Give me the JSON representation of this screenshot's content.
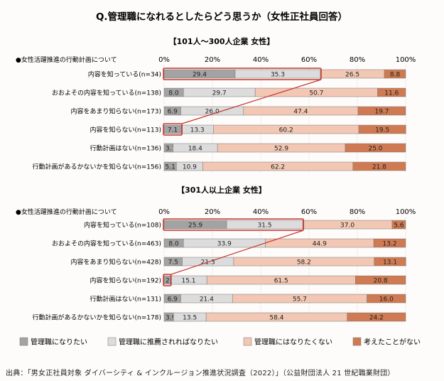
{
  "title": "Q.管理職になれるとしたらどう思うか（女性正社員回答）",
  "source": "出典：「男女正社員対象 ダイバーシティ & インクルージョン推進状況調査（2022）」（公益財団法人 21 世紀職業財団）",
  "colors": {
    "s1": "#a3a3a3",
    "s2": "#dcdcdc",
    "s3": "#f2c7b3",
    "s4": "#cf7a52",
    "highlight": "#c8352e"
  },
  "chart_data": [
    {
      "type": "bar",
      "title": "【101人〜300人企業 女性】",
      "header": "●女性活躍推進の行動計画について",
      "x_ticks": [
        "0%",
        "20%",
        "40%",
        "60%",
        "80%",
        "100%"
      ],
      "xlim": [
        0,
        100
      ],
      "categories": [
        "内容を知っている(n=34)",
        "おおよその内容を知っている(n=138)",
        "内容をあまり知らない(n=173)",
        "内容を知らない(n=113)",
        "行動計画はない(n=136)",
        "行動計画があるかないかを知らない(n=156)"
      ],
      "series": [
        {
          "name": "管理職になりたい",
          "values": [
            29.4,
            8.0,
            6.9,
            7.1,
            3.7,
            5.1
          ]
        },
        {
          "name": "管理職に推薦されればなりたい",
          "values": [
            35.3,
            29.7,
            26.0,
            13.3,
            18.4,
            10.9
          ]
        },
        {
          "name": "管理職にはなりたくない",
          "values": [
            26.5,
            50.7,
            47.4,
            60.2,
            52.9,
            62.2
          ]
        },
        {
          "name": "考えたことがない",
          "values": [
            8.8,
            11.6,
            19.7,
            19.5,
            25.0,
            21.8
          ]
        }
      ]
    },
    {
      "type": "bar",
      "title": "【301人以上企業 女性】",
      "header": "●女性活躍推進の行動計画について",
      "x_ticks": [
        "0%",
        "20%",
        "40%",
        "60%",
        "80%",
        "100%"
      ],
      "xlim": [
        0,
        100
      ],
      "categories": [
        "内容を知っている(n=108)",
        "おおよその内容を知っている(n=463)",
        "内容をあまり知らない(n=428)",
        "内容を知らない(n=192)",
        "行動計画はない(n=131)",
        "行動計画があるかないかを知らない(n=178)"
      ],
      "series": [
        {
          "name": "管理職になりたい",
          "values": [
            25.9,
            8.0,
            7.5,
            2.6,
            6.9,
            3.9
          ]
        },
        {
          "name": "管理職に推薦されればなりたい",
          "values": [
            31.5,
            33.9,
            21.3,
            15.1,
            21.4,
            13.5
          ]
        },
        {
          "name": "管理職にはなりたくない",
          "values": [
            37.0,
            44.9,
            58.2,
            61.5,
            55.7,
            58.4
          ]
        },
        {
          "name": "考えたことがない",
          "values": [
            5.6,
            13.2,
            13.1,
            20.8,
            16.0,
            24.2
          ]
        }
      ]
    }
  ]
}
